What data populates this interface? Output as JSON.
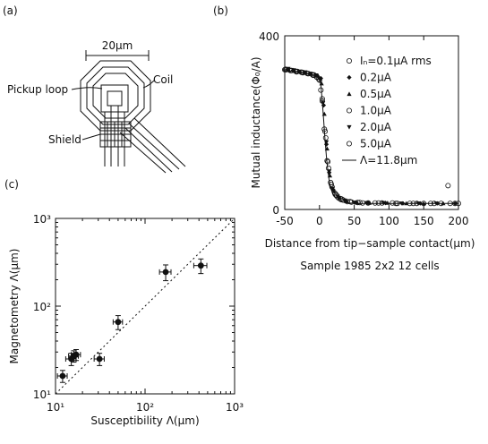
{
  "panel_labels": {
    "a": "(a)",
    "b": "(b)",
    "c": "(c)"
  },
  "schematic": {
    "scale_label": "20μm",
    "coil_label": "Coil",
    "pickup_label": "Pickup loop",
    "shield_label": "Shield"
  },
  "chart_data": [
    {
      "id": "b",
      "type": "scatter",
      "title": "",
      "xlabel": "Distance from tip−sample contact(μm)",
      "ylabel": "Mutual inductance(Φ₀/A)",
      "caption": "Sample 1985 2x2 12 cells",
      "xlim": [
        -50,
        200
      ],
      "ylim": [
        0,
        400
      ],
      "xticks": [
        -50,
        0,
        50,
        100,
        150,
        200
      ],
      "yticks": [
        0,
        400
      ],
      "legend_position": "top-right",
      "series": [
        {
          "name": "Iₙ=0.1μA rms",
          "marker": "open-circle",
          "x": [
            -50,
            -42,
            -34,
            -26,
            -18,
            -10,
            -4,
            0,
            4,
            8,
            12,
            16,
            22,
            30,
            40,
            55,
            70,
            90,
            110,
            130,
            150,
            175,
            200
          ],
          "y": [
            322,
            320,
            318,
            316,
            314,
            310,
            305,
            298,
            250,
            180,
            110,
            62,
            38,
            25,
            18,
            16,
            15,
            15,
            14,
            14,
            14,
            14,
            14
          ]
        },
        {
          "name": "0.2μA",
          "marker": "diamond",
          "x": [
            -46,
            -38,
            -30,
            -22,
            -14,
            -6,
            2,
            6,
            10,
            14,
            20,
            28,
            38,
            52,
            70,
            95,
            120,
            145,
            170,
            195
          ],
          "y": [
            323,
            321,
            318,
            316,
            313,
            309,
            302,
            240,
            150,
            85,
            45,
            28,
            20,
            16,
            15,
            15,
            14,
            14,
            14,
            14
          ]
        },
        {
          "name": "0.5μA",
          "marker": "triangle",
          "x": [
            -44,
            -36,
            -28,
            -20,
            -12,
            -2,
            3,
            7,
            11,
            15,
            21,
            29,
            39,
            54,
            72,
            98,
            125,
            150,
            178
          ],
          "y": [
            321,
            319,
            317,
            315,
            312,
            308,
            290,
            220,
            140,
            78,
            42,
            27,
            19,
            16,
            15,
            15,
            14,
            14,
            14
          ]
        },
        {
          "name": "1.0μA",
          "marker": "open-circle",
          "x": [
            -48,
            -40,
            -32,
            -24,
            -16,
            -8,
            -1,
            4,
            9,
            13,
            18,
            25,
            34,
            46,
            62,
            85,
            112,
            140,
            165,
            188
          ],
          "y": [
            322,
            320,
            318,
            315,
            313,
            310,
            300,
            255,
            165,
            95,
            52,
            32,
            22,
            17,
            15,
            15,
            14,
            14,
            14,
            14
          ]
        },
        {
          "name": "2.0μA",
          "marker": "down-triangle",
          "x": [
            -45,
            -37,
            -29,
            -21,
            -13,
            -5,
            1,
            5,
            10,
            14,
            19,
            26,
            36,
            50,
            68,
            92,
            118,
            142,
            168
          ],
          "y": [
            324,
            321,
            318,
            316,
            313,
            309,
            298,
            245,
            155,
            88,
            48,
            30,
            21,
            16,
            15,
            15,
            14,
            14,
            14
          ]
        },
        {
          "name": "5.0μA",
          "marker": "open-circle",
          "x": [
            -49,
            -41,
            -33,
            -25,
            -17,
            -9,
            -3,
            2,
            7,
            11,
            17,
            24,
            32,
            44,
            58,
            80,
            105,
            135,
            160,
            185,
            195
          ],
          "y": [
            323,
            320,
            317,
            316,
            313,
            309,
            304,
            275,
            185,
            112,
            58,
            34,
            24,
            18,
            16,
            15,
            15,
            14,
            14,
            55,
            14
          ]
        },
        {
          "name": "Λ=11.8μm",
          "marker": "line",
          "x": [
            -50,
            -30,
            -15,
            -5,
            0,
            2,
            4,
            6,
            8,
            10,
            12,
            14,
            16,
            20,
            25,
            30,
            40,
            60,
            100,
            150,
            200
          ],
          "y": [
            320,
            317,
            313,
            308,
            302,
            285,
            250,
            205,
            160,
            120,
            90,
            66,
            50,
            32,
            23,
            18,
            15,
            14,
            14,
            14,
            14
          ]
        }
      ]
    },
    {
      "id": "c",
      "type": "scatter",
      "title": "",
      "xlabel": "Susceptibility Λ(μm)",
      "ylabel": "Magnetometry Λ(μm)",
      "xscale": "log",
      "yscale": "log",
      "xlim": [
        10,
        1000
      ],
      "ylim": [
        10,
        1000
      ],
      "xtick_labels": [
        "10¹",
        "10²",
        "10³"
      ],
      "ytick_labels": [
        "10¹",
        "10²",
        "10³"
      ],
      "reference_line": "y = x (dotted)",
      "series": [
        {
          "name": "",
          "x": [
            12,
            15,
            16,
            17,
            31,
            50,
            170,
            420
          ],
          "y": [
            16,
            25,
            27,
            28,
            25,
            66,
            245,
            290
          ],
          "xerr": [
            1.5,
            2,
            2,
            2,
            4,
            6,
            25,
            70
          ],
          "yerr": [
            2.5,
            4,
            4,
            4,
            4,
            12,
            50,
            55
          ]
        }
      ]
    }
  ]
}
